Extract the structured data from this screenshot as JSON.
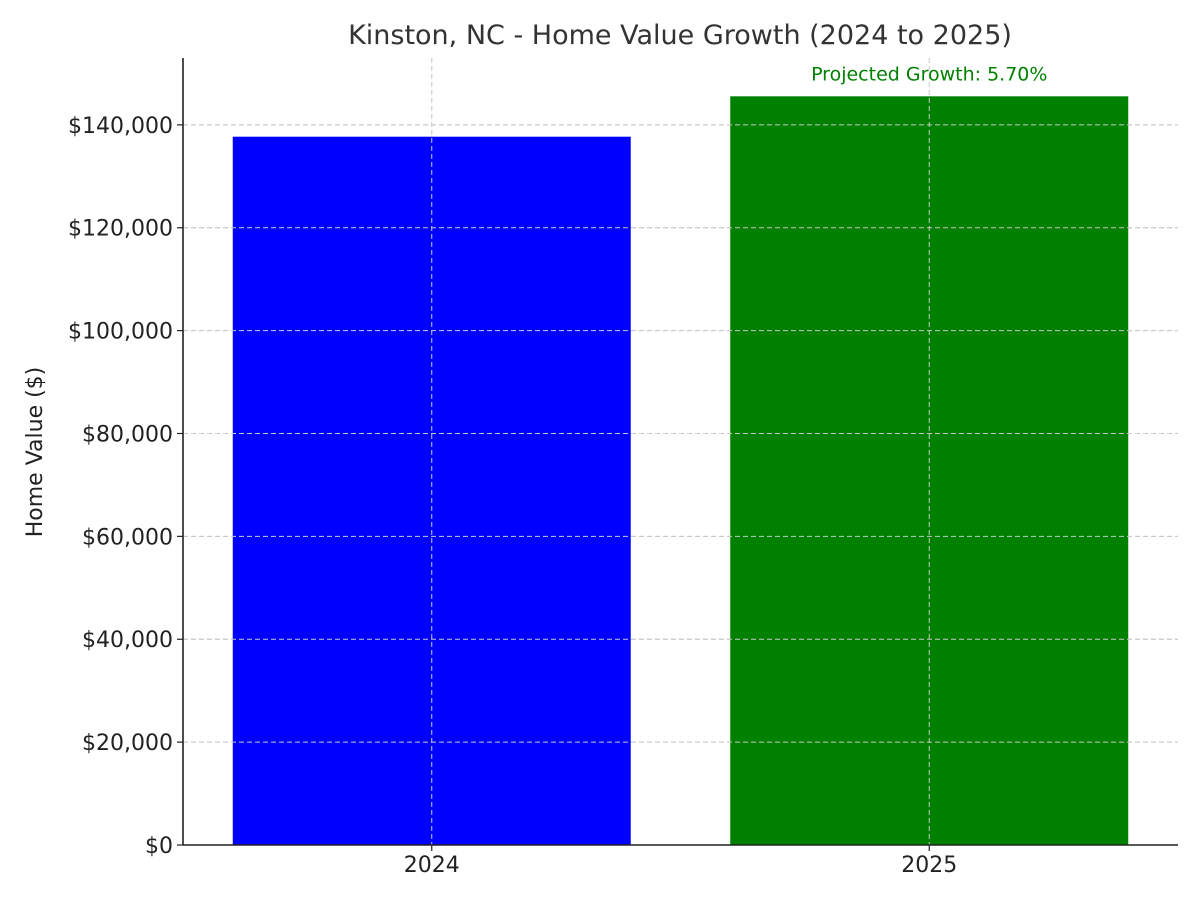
{
  "chart_data": {
    "type": "bar",
    "title": "Kinston, NC - Home Value Growth (2024 to 2025)",
    "xlabel": "",
    "ylabel": "Home Value ($)",
    "categories": [
      "2024",
      "2025"
    ],
    "values": [
      137700,
      145550
    ],
    "colors": [
      "#0000ff",
      "#008000"
    ],
    "ylim": [
      0,
      153000
    ],
    "yticks": [
      0,
      20000,
      40000,
      60000,
      80000,
      100000,
      120000,
      140000
    ],
    "ytick_labels": [
      "$0",
      "$20,000",
      "$40,000",
      "$60,000",
      "$80,000",
      "$100,000",
      "$120,000",
      "$140,000"
    ],
    "grid": true,
    "annotation": {
      "text": "Projected Growth: 5.70%",
      "category": "2025",
      "color": "#008000"
    }
  }
}
